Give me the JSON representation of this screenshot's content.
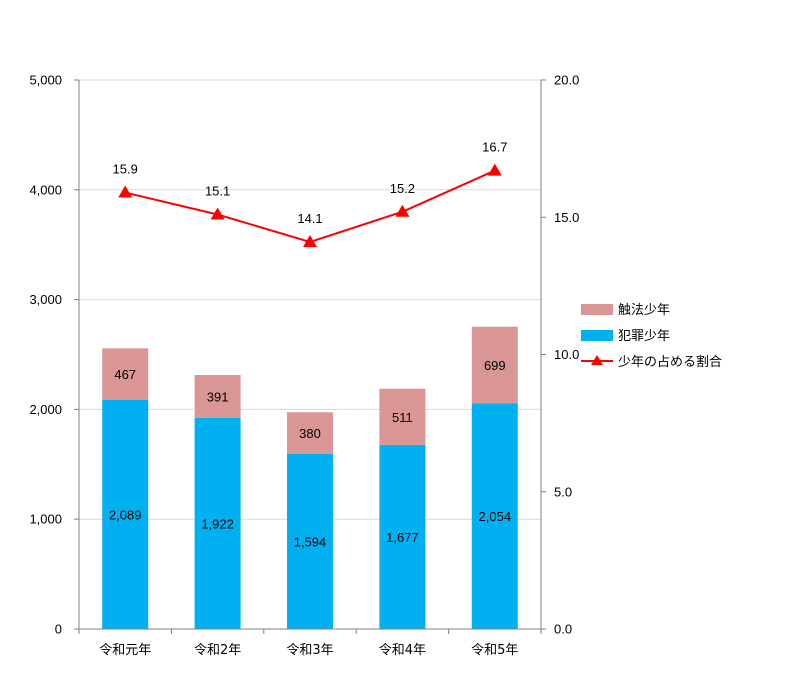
{
  "chart_data": {
    "type": "bar",
    "stacked": true,
    "categories": [
      "令和元年",
      "令和2年",
      "令和3年",
      "令和4年",
      "令和5年"
    ],
    "series": [
      {
        "name": "犯罪少年",
        "type": "bar",
        "axis": "left",
        "color": "#00b0f0",
        "values": [
          2089,
          1922,
          1594,
          1677,
          2054
        ],
        "labels": [
          "2,089",
          "1,922",
          "1,594",
          "1,677",
          "2,054"
        ]
      },
      {
        "name": "触法少年",
        "type": "bar",
        "axis": "left",
        "color": "#d99694",
        "values": [
          467,
          391,
          380,
          511,
          699
        ],
        "labels": [
          "467",
          "391",
          "380",
          "511",
          "699"
        ]
      },
      {
        "name": "少年の占める割合",
        "type": "line",
        "axis": "right",
        "color": "#ff0000",
        "marker": "triangle",
        "values": [
          15.9,
          15.1,
          14.1,
          15.2,
          16.7
        ],
        "labels": [
          "15.9",
          "15.1",
          "14.1",
          "15.2",
          "16.7"
        ]
      }
    ],
    "y_left": {
      "ylim": [
        0,
        5000
      ],
      "ticks": [
        "0",
        "1,000",
        "2,000",
        "3,000",
        "4,000",
        "5,000"
      ]
    },
    "y_right": {
      "ylim": [
        0,
        20
      ],
      "ticks": [
        "0.0",
        "5.0",
        "10.0",
        "15.0",
        "20.0"
      ]
    },
    "grid": true,
    "legend_position": "right",
    "legend_order": [
      "触法少年",
      "犯罪少年",
      "少年の占める割合"
    ]
  }
}
